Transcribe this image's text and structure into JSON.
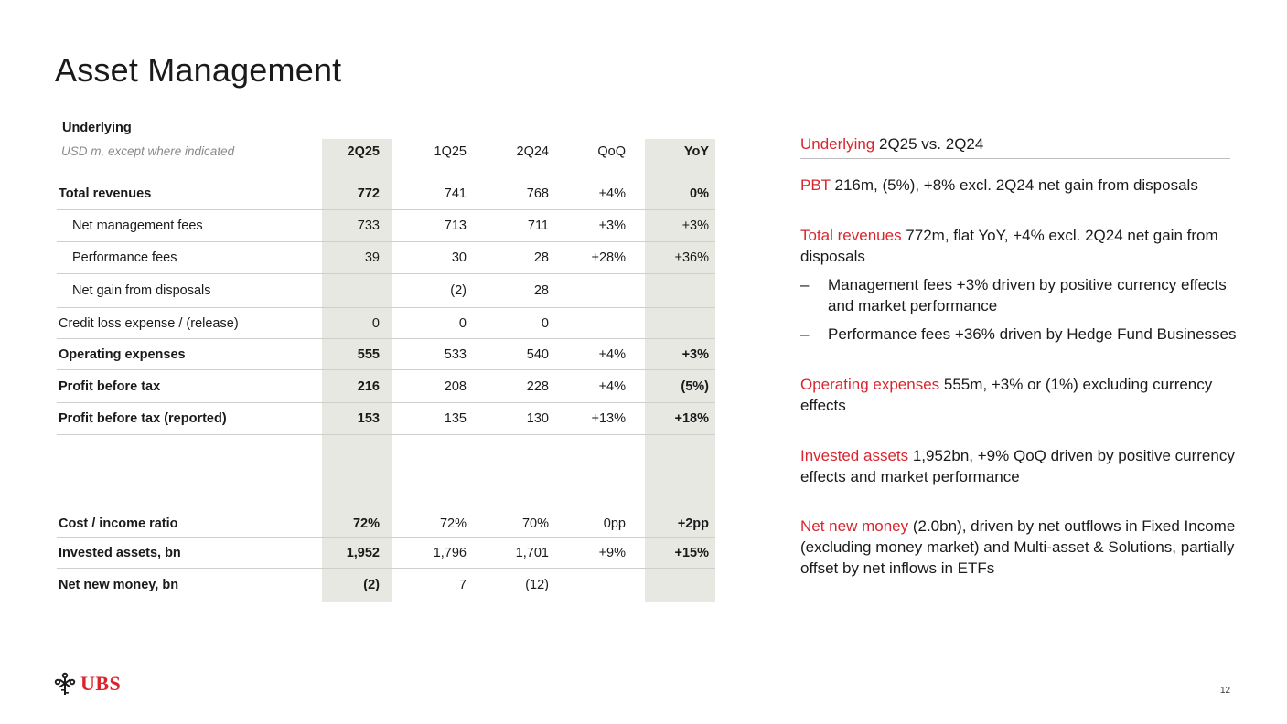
{
  "title": "Asset Management",
  "table": {
    "section_label": "Underlying",
    "units_label": "USD m, except where indicated",
    "columns": [
      "2Q25",
      "1Q25",
      "2Q24",
      "QoQ",
      "YoY"
    ],
    "rows": [
      {
        "label": "Total revenues",
        "values": [
          "772",
          "741",
          "768",
          "+4%",
          "0%"
        ]
      },
      {
        "label": "Net management fees",
        "values": [
          "733",
          "713",
          "711",
          "+3%",
          "+3%"
        ]
      },
      {
        "label": "Performance fees",
        "values": [
          "39",
          "30",
          "28",
          "+28%",
          "+36%"
        ]
      },
      {
        "label": "Net gain from disposals",
        "values": [
          "",
          "(2)",
          "28",
          "",
          ""
        ]
      },
      {
        "label": "Credit loss expense / (release)",
        "values": [
          "0",
          "0",
          "0",
          "",
          ""
        ]
      },
      {
        "label": "Operating expenses",
        "values": [
          "555",
          "533",
          "540",
          "+4%",
          "+3%"
        ]
      },
      {
        "label": "Profit before tax",
        "values": [
          "216",
          "208",
          "228",
          "+4%",
          "(5%)"
        ]
      },
      {
        "label": "Profit before tax (reported)",
        "values": [
          "153",
          "135",
          "130",
          "+13%",
          "+18%"
        ]
      },
      {
        "label": "Cost / income ratio",
        "values": [
          "72%",
          "72%",
          "70%",
          "0pp",
          "+2pp"
        ]
      },
      {
        "label": "Invested assets, bn",
        "values": [
          "1,952",
          "1,796",
          "1,701",
          "+9%",
          "+15%"
        ]
      },
      {
        "label": "Net new money, bn",
        "values": [
          "(2)",
          "7",
          "(12)",
          "",
          ""
        ]
      }
    ]
  },
  "commentary": {
    "heading_red": "Underlying",
    "heading_rest": " 2Q25 vs. 2Q24",
    "pbt_red": "PBT",
    "pbt_text": " 216m, (5%), +8% excl. 2Q24 net gain from disposals",
    "rev_red": "Total revenues",
    "rev_text": " 772m, flat YoY, +4% excl. 2Q24 net gain from disposals",
    "bullet_dash": "–",
    "bullet1": "Management fees +3% driven by positive currency effects and market performance",
    "bullet2": "Performance fees +36% driven by Hedge Fund Businesses",
    "opex_red": "Operating expenses",
    "opex_text": " 555m, +3% or (1%) excluding currency effects",
    "ia_red": "Invested assets",
    "ia_text": " 1,952bn, +9% QoQ driven by positive currency effects and market performance",
    "nnm_red": "Net new money",
    "nnm_text": " (2.0bn), driven by net outflows in Fixed Income (excluding money market) and Multi-asset & Solutions, partially offset by net inflows in ETFs"
  },
  "footer": {
    "logo_text": "UBS",
    "page_number": "12",
    "brand_color": "#d9262e"
  }
}
